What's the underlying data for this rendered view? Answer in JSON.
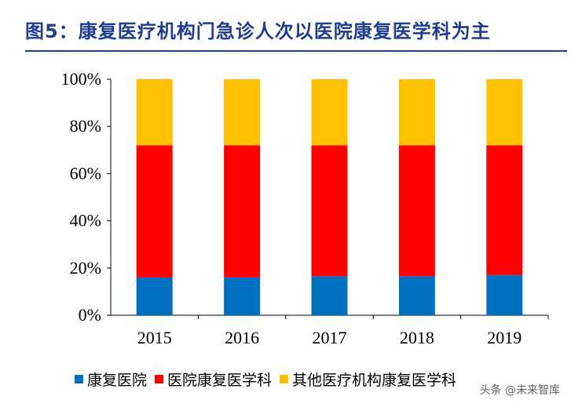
{
  "title": "图5：康复医疗机构门急诊人次以医院康复医学科为主",
  "watermark": "头条 @未来智库",
  "colors": {
    "title": "#1f3c8f",
    "series_1": "#0070c0",
    "series_2": "#ff0000",
    "series_3": "#ffc000"
  },
  "chart_data": {
    "type": "bar",
    "stacked": true,
    "categories": [
      "2015",
      "2016",
      "2017",
      "2018",
      "2019"
    ],
    "series": [
      {
        "name": "康复医院",
        "values": [
          16,
          16,
          16.5,
          16.5,
          17
        ]
      },
      {
        "name": "医院康复医学科",
        "values": [
          56,
          56,
          55.5,
          55.5,
          55
        ]
      },
      {
        "name": "其他医疗机构康复医学科",
        "values": [
          28,
          28,
          28,
          28,
          28
        ]
      }
    ],
    "yticks": [
      "0%",
      "20%",
      "40%",
      "60%",
      "80%",
      "100%"
    ],
    "ylim": [
      0,
      100
    ],
    "legend": "bottom",
    "grid": false
  }
}
